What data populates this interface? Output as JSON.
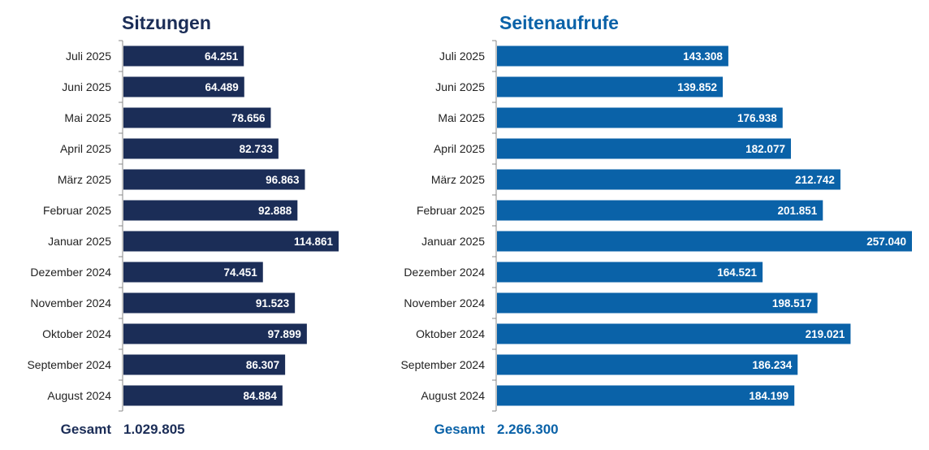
{
  "colors": {
    "sessions": "#1b2d57",
    "pageviews": "#0a62a8",
    "label_text": "#222222",
    "axis": "#888888",
    "bar_label": "#ffffff"
  },
  "chart_data": [
    {
      "type": "bar",
      "orientation": "horizontal",
      "title": "Sitzungen",
      "categories": [
        "Juli 2025",
        "Juni 2025",
        "Mai 2025",
        "April 2025",
        "März 2025",
        "Februar 2025",
        "Januar 2025",
        "Dezember 2024",
        "November 2024",
        "Oktober 2024",
        "September 2024",
        "August 2024"
      ],
      "values": [
        64251,
        64489,
        78656,
        82733,
        96863,
        92888,
        114861,
        74451,
        91523,
        97899,
        86307,
        84884
      ],
      "value_labels": [
        "64.251",
        "64.489",
        "78.656",
        "82.733",
        "96.863",
        "92.888",
        "114.861",
        "74.451",
        "91.523",
        "97.899",
        "86.307",
        "84.884"
      ],
      "total_label": "Gesamt",
      "total_value": "1.029.805",
      "xlim": [
        0,
        114861
      ]
    },
    {
      "type": "bar",
      "orientation": "horizontal",
      "title": "Seitenaufrufe",
      "categories": [
        "Juli 2025",
        "Juni 2025",
        "Mai 2025",
        "April 2025",
        "März 2025",
        "Februar 2025",
        "Januar 2025",
        "Dezember 2024",
        "November 2024",
        "Oktober 2024",
        "September 2024",
        "August 2024"
      ],
      "values": [
        143308,
        139852,
        176938,
        182077,
        212742,
        201851,
        257040,
        164521,
        198517,
        219021,
        186234,
        184199
      ],
      "value_labels": [
        "143.308",
        "139.852",
        "176.938",
        "182.077",
        "212.742",
        "201.851",
        "257.040",
        "164.521",
        "198.517",
        "219.021",
        "186.234",
        "184.199"
      ],
      "total_label": "Gesamt",
      "total_value": "2.266.300",
      "xlim": [
        0,
        257040
      ]
    }
  ]
}
